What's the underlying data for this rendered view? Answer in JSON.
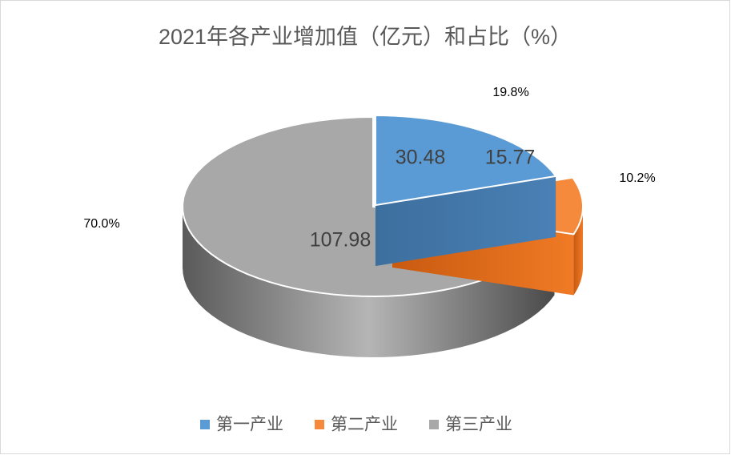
{
  "chart_data": {
    "type": "pie3d",
    "title": "2021年各产业增加值（亿元）和占比（%）",
    "categories": [
      "第一产业",
      "第二产业",
      "第三产业"
    ],
    "series": [
      {
        "values": [
          30.48,
          15.77,
          107.98
        ]
      }
    ],
    "colors": [
      "#5b9bd5",
      "#f58a3c",
      "#a8a8a8"
    ],
    "percent_labels": [
      "19.8%",
      "10.2%",
      "70.0%"
    ],
    "legend": "bottom"
  }
}
